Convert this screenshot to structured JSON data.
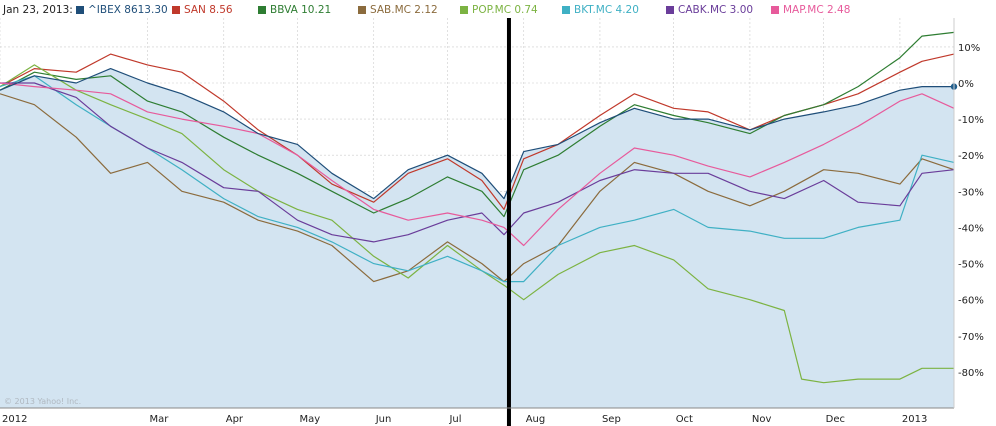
{
  "header": {
    "date": "Jan 23, 2013:"
  },
  "credit": "© 2013 Yahoo! Inc.",
  "colors": {
    "area": "#d3e4f1",
    "grid": "#cccccc",
    "divider": "#000000",
    "last_marker": "#1f5d8b"
  },
  "chart_data": {
    "type": "line",
    "x_range": [
      "2012-01-01",
      "2013-01-23"
    ],
    "ylim": [
      -90,
      18
    ],
    "y_ticks": [
      {
        "value": 10,
        "label": "10%"
      },
      {
        "value": 0,
        "label": "0%"
      },
      {
        "value": -10,
        "label": "-10%"
      },
      {
        "value": -20,
        "label": "-20%"
      },
      {
        "value": -30,
        "label": "-30%"
      },
      {
        "value": -40,
        "label": "-40%"
      },
      {
        "value": -50,
        "label": "-50%"
      },
      {
        "value": -60,
        "label": "-60%"
      },
      {
        "value": -70,
        "label": "-70%"
      },
      {
        "value": -80,
        "label": "-80%"
      }
    ],
    "x_ticks": [
      {
        "date": "2012-01-01",
        "label": "2012"
      },
      {
        "date": "2012-03-01",
        "label": "Mar"
      },
      {
        "date": "2012-04-01",
        "label": "Apr"
      },
      {
        "date": "2012-05-01",
        "label": "May"
      },
      {
        "date": "2012-06-01",
        "label": "Jun"
      },
      {
        "date": "2012-07-01",
        "label": "Jul"
      },
      {
        "date": "2012-08-01",
        "label": "Aug"
      },
      {
        "date": "2012-09-01",
        "label": "Sep"
      },
      {
        "date": "2012-10-01",
        "label": "Oct"
      },
      {
        "date": "2012-11-01",
        "label": "Nov"
      },
      {
        "date": "2012-12-01",
        "label": "Dec"
      },
      {
        "date": "2013-01-01",
        "label": "2013"
      }
    ],
    "vertical_marker": "2012-07-26",
    "area_series": "^IBEX",
    "series": [
      {
        "name": "^IBEX",
        "legend": "^IBEX 8613.30",
        "color": "#1f4e79",
        "points": [
          [
            "2012-01-01",
            -2
          ],
          [
            "2012-01-15",
            2
          ],
          [
            "2012-02-01",
            0
          ],
          [
            "2012-02-15",
            4
          ],
          [
            "2012-03-01",
            0
          ],
          [
            "2012-03-15",
            -3
          ],
          [
            "2012-04-01",
            -8
          ],
          [
            "2012-04-15",
            -14
          ],
          [
            "2012-05-01",
            -17
          ],
          [
            "2012-05-15",
            -25
          ],
          [
            "2012-06-01",
            -32
          ],
          [
            "2012-06-15",
            -24
          ],
          [
            "2012-07-01",
            -20
          ],
          [
            "2012-07-15",
            -25
          ],
          [
            "2012-07-24",
            -32
          ],
          [
            "2012-08-01",
            -19
          ],
          [
            "2012-08-15",
            -17
          ],
          [
            "2012-09-01",
            -11
          ],
          [
            "2012-09-15",
            -7
          ],
          [
            "2012-10-01",
            -10
          ],
          [
            "2012-10-15",
            -10
          ],
          [
            "2012-11-01",
            -13
          ],
          [
            "2012-11-15",
            -10
          ],
          [
            "2012-12-01",
            -8
          ],
          [
            "2012-12-15",
            -6
          ],
          [
            "2013-01-01",
            -2
          ],
          [
            "2013-01-10",
            -1
          ],
          [
            "2013-01-23",
            -1
          ]
        ]
      },
      {
        "name": "SAN",
        "legend": "SAN 8.56",
        "color": "#c0392b",
        "points": [
          [
            "2012-01-01",
            -1
          ],
          [
            "2012-01-15",
            4
          ],
          [
            "2012-02-01",
            3
          ],
          [
            "2012-02-15",
            8
          ],
          [
            "2012-03-01",
            5
          ],
          [
            "2012-03-15",
            3
          ],
          [
            "2012-04-01",
            -5
          ],
          [
            "2012-04-15",
            -13
          ],
          [
            "2012-05-01",
            -20
          ],
          [
            "2012-05-15",
            -28
          ],
          [
            "2012-06-01",
            -33
          ],
          [
            "2012-06-15",
            -25
          ],
          [
            "2012-07-01",
            -21
          ],
          [
            "2012-07-15",
            -27
          ],
          [
            "2012-07-24",
            -35
          ],
          [
            "2012-08-01",
            -21
          ],
          [
            "2012-08-15",
            -17
          ],
          [
            "2012-09-01",
            -9
          ],
          [
            "2012-09-15",
            -3
          ],
          [
            "2012-10-01",
            -7
          ],
          [
            "2012-10-15",
            -8
          ],
          [
            "2012-11-01",
            -13
          ],
          [
            "2012-11-15",
            -9
          ],
          [
            "2012-12-01",
            -6
          ],
          [
            "2012-12-15",
            -3
          ],
          [
            "2013-01-01",
            3
          ],
          [
            "2013-01-10",
            6
          ],
          [
            "2013-01-23",
            8
          ]
        ]
      },
      {
        "name": "BBVA",
        "legend": "BBVA 10.21",
        "color": "#2e7d32",
        "points": [
          [
            "2012-01-01",
            -2
          ],
          [
            "2012-01-15",
            3
          ],
          [
            "2012-02-01",
            1
          ],
          [
            "2012-02-15",
            2
          ],
          [
            "2012-03-01",
            -5
          ],
          [
            "2012-03-15",
            -8
          ],
          [
            "2012-04-01",
            -15
          ],
          [
            "2012-04-15",
            -20
          ],
          [
            "2012-05-01",
            -25
          ],
          [
            "2012-05-15",
            -30
          ],
          [
            "2012-06-01",
            -36
          ],
          [
            "2012-06-15",
            -32
          ],
          [
            "2012-07-01",
            -26
          ],
          [
            "2012-07-15",
            -30
          ],
          [
            "2012-07-24",
            -37
          ],
          [
            "2012-08-01",
            -24
          ],
          [
            "2012-08-15",
            -20
          ],
          [
            "2012-09-01",
            -12
          ],
          [
            "2012-09-15",
            -6
          ],
          [
            "2012-10-01",
            -9
          ],
          [
            "2012-10-15",
            -11
          ],
          [
            "2012-11-01",
            -14
          ],
          [
            "2012-11-15",
            -9
          ],
          [
            "2012-12-01",
            -6
          ],
          [
            "2012-12-15",
            -1
          ],
          [
            "2013-01-01",
            7
          ],
          [
            "2013-01-10",
            13
          ],
          [
            "2013-01-23",
            14
          ]
        ]
      },
      {
        "name": "SAB.MC",
        "legend": "SAB.MC 2.12",
        "color": "#8b6b3d",
        "points": [
          [
            "2012-01-01",
            -3
          ],
          [
            "2012-01-15",
            -6
          ],
          [
            "2012-02-01",
            -15
          ],
          [
            "2012-02-15",
            -25
          ],
          [
            "2012-03-01",
            -22
          ],
          [
            "2012-03-15",
            -30
          ],
          [
            "2012-04-01",
            -33
          ],
          [
            "2012-04-15",
            -38
          ],
          [
            "2012-05-01",
            -41
          ],
          [
            "2012-05-15",
            -45
          ],
          [
            "2012-06-01",
            -55
          ],
          [
            "2012-06-15",
            -52
          ],
          [
            "2012-07-01",
            -44
          ],
          [
            "2012-07-15",
            -50
          ],
          [
            "2012-07-24",
            -55
          ],
          [
            "2012-08-01",
            -50
          ],
          [
            "2012-08-15",
            -45
          ],
          [
            "2012-09-01",
            -30
          ],
          [
            "2012-09-15",
            -22
          ],
          [
            "2012-10-01",
            -25
          ],
          [
            "2012-10-15",
            -30
          ],
          [
            "2012-11-01",
            -34
          ],
          [
            "2012-11-15",
            -30
          ],
          [
            "2012-12-01",
            -24
          ],
          [
            "2012-12-15",
            -25
          ],
          [
            "2013-01-01",
            -28
          ],
          [
            "2013-01-10",
            -21
          ],
          [
            "2013-01-23",
            -24
          ]
        ]
      },
      {
        "name": "POP.MC",
        "legend": "POP.MC 0.74",
        "color": "#7cb342",
        "points": [
          [
            "2012-01-01",
            -1
          ],
          [
            "2012-01-15",
            5
          ],
          [
            "2012-02-01",
            -2
          ],
          [
            "2012-02-15",
            -6
          ],
          [
            "2012-03-01",
            -10
          ],
          [
            "2012-03-15",
            -14
          ],
          [
            "2012-04-01",
            -24
          ],
          [
            "2012-04-15",
            -30
          ],
          [
            "2012-05-01",
            -35
          ],
          [
            "2012-05-15",
            -38
          ],
          [
            "2012-06-01",
            -48
          ],
          [
            "2012-06-15",
            -54
          ],
          [
            "2012-07-01",
            -45
          ],
          [
            "2012-07-15",
            -52
          ],
          [
            "2012-07-24",
            -56
          ],
          [
            "2012-08-01",
            -60
          ],
          [
            "2012-08-15",
            -53
          ],
          [
            "2012-09-01",
            -47
          ],
          [
            "2012-09-15",
            -45
          ],
          [
            "2012-10-01",
            -49
          ],
          [
            "2012-10-15",
            -57
          ],
          [
            "2012-11-01",
            -60
          ],
          [
            "2012-11-15",
            -63
          ],
          [
            "2012-11-22",
            -82
          ],
          [
            "2012-12-01",
            -83
          ],
          [
            "2012-12-15",
            -82
          ],
          [
            "2013-01-01",
            -82
          ],
          [
            "2013-01-10",
            -79
          ],
          [
            "2013-01-23",
            -79
          ]
        ]
      },
      {
        "name": "BKT.MC",
        "legend": "BKT.MC 4.20",
        "color": "#3fb0c4",
        "points": [
          [
            "2012-01-01",
            -1
          ],
          [
            "2012-01-15",
            2
          ],
          [
            "2012-02-01",
            -6
          ],
          [
            "2012-02-15",
            -12
          ],
          [
            "2012-03-01",
            -18
          ],
          [
            "2012-03-15",
            -24
          ],
          [
            "2012-04-01",
            -32
          ],
          [
            "2012-04-15",
            -37
          ],
          [
            "2012-05-01",
            -40
          ],
          [
            "2012-05-15",
            -44
          ],
          [
            "2012-06-01",
            -50
          ],
          [
            "2012-06-15",
            -52
          ],
          [
            "2012-07-01",
            -48
          ],
          [
            "2012-07-15",
            -52
          ],
          [
            "2012-07-24",
            -55
          ],
          [
            "2012-08-01",
            -55
          ],
          [
            "2012-08-15",
            -45
          ],
          [
            "2012-09-01",
            -40
          ],
          [
            "2012-09-15",
            -38
          ],
          [
            "2012-10-01",
            -35
          ],
          [
            "2012-10-15",
            -40
          ],
          [
            "2012-11-01",
            -41
          ],
          [
            "2012-11-15",
            -43
          ],
          [
            "2012-12-01",
            -43
          ],
          [
            "2012-12-15",
            -40
          ],
          [
            "2013-01-01",
            -38
          ],
          [
            "2013-01-10",
            -20
          ],
          [
            "2013-01-23",
            -22
          ]
        ]
      },
      {
        "name": "CABK.MC",
        "legend": "CABK.MC 3.00",
        "color": "#6a3d9a",
        "points": [
          [
            "2012-01-01",
            0
          ],
          [
            "2012-01-15",
            0
          ],
          [
            "2012-02-01",
            -4
          ],
          [
            "2012-02-15",
            -12
          ],
          [
            "2012-03-01",
            -18
          ],
          [
            "2012-03-15",
            -22
          ],
          [
            "2012-04-01",
            -29
          ],
          [
            "2012-04-15",
            -30
          ],
          [
            "2012-05-01",
            -38
          ],
          [
            "2012-05-15",
            -42
          ],
          [
            "2012-06-01",
            -44
          ],
          [
            "2012-06-15",
            -42
          ],
          [
            "2012-07-01",
            -38
          ],
          [
            "2012-07-15",
            -36
          ],
          [
            "2012-07-24",
            -42
          ],
          [
            "2012-08-01",
            -36
          ],
          [
            "2012-08-15",
            -33
          ],
          [
            "2012-09-01",
            -27
          ],
          [
            "2012-09-15",
            -24
          ],
          [
            "2012-10-01",
            -25
          ],
          [
            "2012-10-15",
            -25
          ],
          [
            "2012-11-01",
            -30
          ],
          [
            "2012-11-15",
            -32
          ],
          [
            "2012-12-01",
            -27
          ],
          [
            "2012-12-15",
            -33
          ],
          [
            "2013-01-01",
            -34
          ],
          [
            "2013-01-10",
            -25
          ],
          [
            "2013-01-23",
            -24
          ]
        ]
      },
      {
        "name": "MAP.MC",
        "legend": "MAP.MC 2.48",
        "color": "#e75a9b",
        "points": [
          [
            "2012-01-01",
            0
          ],
          [
            "2012-01-15",
            -1
          ],
          [
            "2012-02-01",
            -2
          ],
          [
            "2012-02-15",
            -3
          ],
          [
            "2012-03-01",
            -8
          ],
          [
            "2012-03-15",
            -10
          ],
          [
            "2012-04-01",
            -12
          ],
          [
            "2012-04-15",
            -14
          ],
          [
            "2012-05-01",
            -20
          ],
          [
            "2012-05-15",
            -27
          ],
          [
            "2012-06-01",
            -35
          ],
          [
            "2012-06-15",
            -38
          ],
          [
            "2012-07-01",
            -36
          ],
          [
            "2012-07-15",
            -38
          ],
          [
            "2012-07-24",
            -40
          ],
          [
            "2012-08-01",
            -45
          ],
          [
            "2012-08-15",
            -35
          ],
          [
            "2012-09-01",
            -25
          ],
          [
            "2012-09-15",
            -18
          ],
          [
            "2012-10-01",
            -20
          ],
          [
            "2012-10-15",
            -23
          ],
          [
            "2012-11-01",
            -26
          ],
          [
            "2012-11-15",
            -22
          ],
          [
            "2012-12-01",
            -17
          ],
          [
            "2012-12-15",
            -12
          ],
          [
            "2013-01-01",
            -5
          ],
          [
            "2013-01-10",
            -3
          ],
          [
            "2013-01-23",
            -7
          ]
        ]
      }
    ]
  }
}
